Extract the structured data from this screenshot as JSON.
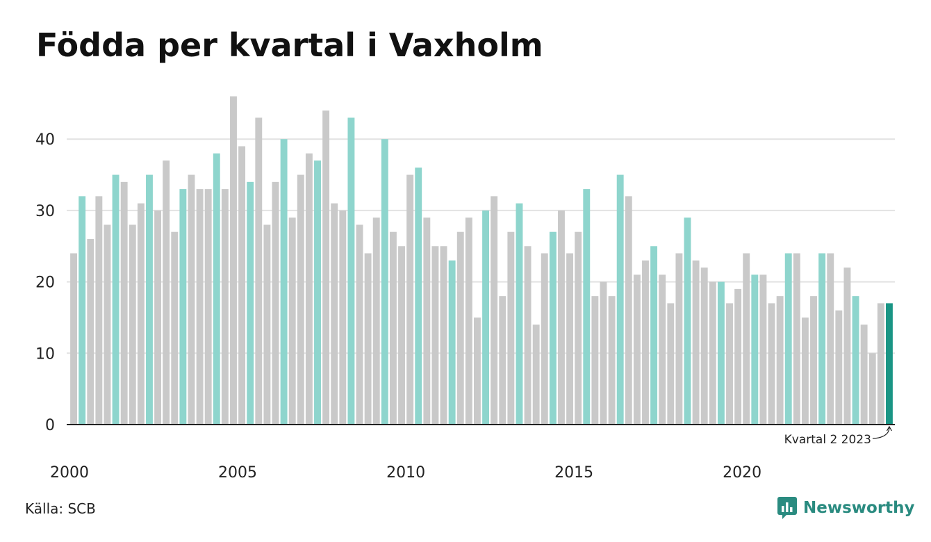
{
  "title": "Födda per kvartal i Vaxholm",
  "source": "Källa: SCB",
  "brand": "Newsworthy",
  "colors": {
    "grey": "#c9c9c9",
    "q2": "#8ed5cd",
    "highlight": "#1a9585",
    "grid": "#e2e2e2",
    "axis": "#222222"
  },
  "chart_data": {
    "type": "bar",
    "title": "Födda per kvartal i Vaxholm",
    "xlabel": "",
    "ylabel": "",
    "ylim": [
      0,
      46
    ],
    "y_ticks": [
      0,
      10,
      20,
      30,
      40
    ],
    "x_tick_labels": [
      "2000",
      "2005",
      "2010",
      "2015",
      "2020"
    ],
    "start_year": 2000,
    "highlight_quarter": 2,
    "annotation": "Kvartal 2 2023",
    "grid": true,
    "values": [
      24,
      32,
      26,
      32,
      28,
      35,
      34,
      28,
      31,
      35,
      30,
      37,
      27,
      33,
      35,
      33,
      33,
      38,
      33,
      46,
      39,
      34,
      43,
      28,
      34,
      40,
      29,
      35,
      38,
      37,
      44,
      31,
      30,
      43,
      28,
      24,
      29,
      40,
      27,
      25,
      35,
      36,
      29,
      25,
      25,
      23,
      27,
      29,
      15,
      30,
      32,
      18,
      27,
      31,
      25,
      14,
      24,
      27,
      30,
      24,
      27,
      33,
      18,
      20,
      18,
      35,
      32,
      21,
      23,
      25,
      21,
      17,
      24,
      29,
      23,
      22,
      20,
      20,
      17,
      19,
      24,
      21,
      21,
      17,
      18,
      24,
      24,
      15,
      18,
      24,
      24,
      16,
      22,
      18,
      14,
      10,
      17,
      17
    ]
  }
}
